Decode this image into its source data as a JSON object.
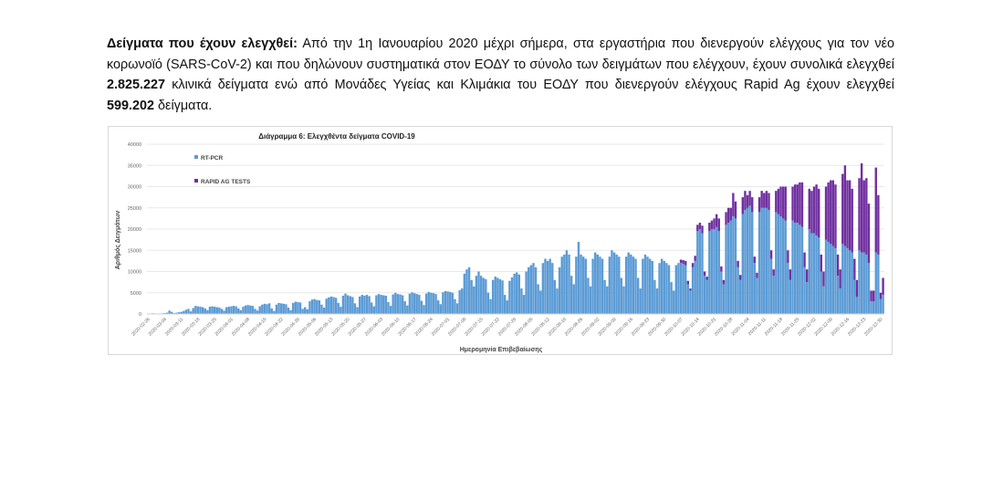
{
  "paragraph": {
    "heading": "Δείγματα που έχουν ελεγχθεί:",
    "text1": " Από την 1η Ιανουαρίου 2020 μέχρι σήμερα, στα εργαστήρια που διενεργούν ελέγχους για τον νέο κορωνοϊό (SARS-CoV-2) και που δηλώνουν συστηματικά στον ΕΟΔΥ το σύνολο των δειγμάτων που ελέγχουν, έχουν συνολικά ελεγχθεί ",
    "number1": "2.825.227",
    "text2": " κλινικά δείγματα ενώ από Μονάδες Υγείας και Κλιμάκια του ΕΟΔΥ που διενεργούν ελέγχους Rapid Ag έχουν ελεγχθεί ",
    "number2": "599.202",
    "text3": " δείγματα."
  },
  "chart_data": {
    "type": "bar",
    "stacked": true,
    "title": "Διάγραμμα 6: Ελεγχθέντα δείγματα COVID-19",
    "xlabel": "Ημερομηνία Επιβεβαίωσης",
    "ylabel": "Αριθμός Δειγμάτων",
    "ylim": [
      0,
      40000
    ],
    "y_ticks": [
      "0",
      "5000",
      "10000",
      "15000",
      "20000",
      "25000",
      "30000",
      "35000",
      "40000"
    ],
    "grid": true,
    "legend_position": "top-left",
    "start_date": "2020-02-26",
    "x_tick_labels": [
      "2020-02-26",
      "2020-03-04",
      "2020-03-11",
      "2020-03-18",
      "2020-03-25",
      "2020-04-01",
      "2020-04-08",
      "2020-04-15",
      "2020-04-22",
      "2020-04-29",
      "2020-05-06",
      "2020-05-13",
      "2020-05-20",
      "2020-05-27",
      "2020-06-03",
      "2020-06-10",
      "2020-06-17",
      "2020-06-24",
      "2020-07-01",
      "2020-07-08",
      "2020-07-15",
      "2020-07-22",
      "2020-07-29",
      "2020-08-05",
      "2020-08-12",
      "2020-08-19",
      "2020-08-26",
      "2020-09-02",
      "2020-09-09",
      "2020-09-16",
      "2020-09-23",
      "2020-09-30",
      "2020-10-07",
      "2020-10-14",
      "2020-10-21",
      "2020-10-28",
      "2020-11-04",
      "2020-11-11",
      "2020-11-18",
      "2020-11-25",
      "2020-12-02",
      "2020-12-09",
      "2020-12-16",
      "2020-12-23",
      "2020-12-30"
    ],
    "colors": {
      "rt_pcr": "#5b9bd5",
      "rapid": "#7030a0"
    },
    "series": [
      {
        "name": "RT-PCR",
        "values": [
          100,
          100,
          150,
          100,
          50,
          100,
          150,
          200,
          300,
          800,
          500,
          200,
          300,
          400,
          500,
          700,
          1000,
          1200,
          600,
          1400,
          1900,
          1800,
          1700,
          1600,
          1300,
          900,
          1700,
          1800,
          1700,
          1600,
          1500,
          1200,
          800,
          1600,
          1700,
          1800,
          1900,
          1800,
          1300,
          900,
          1700,
          2000,
          2100,
          2000,
          1900,
          1200,
          800,
          1800,
          2200,
          2400,
          2300,
          2500,
          1300,
          700,
          2200,
          2600,
          2500,
          2400,
          2300,
          1500,
          900,
          2600,
          2900,
          2800,
          2700,
          1200,
          1600,
          1100,
          3000,
          3400,
          3500,
          3300,
          3200,
          2200,
          1500,
          3600,
          3900,
          4100,
          4000,
          3800,
          2600,
          1700,
          4300,
          4800,
          4400,
          4200,
          4000,
          2500,
          1600,
          4100,
          4500,
          4300,
          4500,
          4200,
          2700,
          1800,
          4400,
          4700,
          4500,
          4400,
          4300,
          2800,
          1900,
          4600,
          5000,
          4700,
          4600,
          4400,
          3000,
          2000,
          4800,
          5100,
          4900,
          4700,
          4500,
          3100,
          2100,
          4800,
          5200,
          5000,
          4900,
          4700,
          3200,
          2300,
          5100,
          5400,
          5300,
          5200,
          5000,
          3500,
          2500,
          5600,
          6000,
          9500,
          10500,
          11000,
          8000,
          6500,
          9000,
          10000,
          9000,
          8500,
          8200,
          5000,
          3500,
          8000,
          8800,
          8500,
          8200,
          7900,
          4500,
          3200,
          7800,
          8600,
          9500,
          9800,
          9300,
          6000,
          4500,
          10000,
          11000,
          11500,
          12000,
          11000,
          7000,
          5500,
          12000,
          13000,
          12500,
          13000,
          12000,
          8000,
          6000,
          11000,
          13500,
          14000,
          15000,
          14000,
          9000,
          7000,
          13500,
          17000,
          14000,
          13500,
          13000,
          8500,
          6500,
          13000,
          14500,
          14000,
          13500,
          13000,
          8000,
          6500,
          13500,
          15000,
          14500,
          14000,
          13500,
          8500,
          6500,
          13500,
          14500,
          14000,
          13500,
          13000,
          8500,
          6000,
          13000,
          14000,
          13500,
          13000,
          12500,
          8000,
          6000,
          12000,
          13000,
          12500,
          12000,
          11500,
          7500,
          5500,
          11500,
          12000,
          12000,
          11800,
          11500,
          7000,
          5500,
          11000,
          12500,
          19500,
          20000,
          19000,
          9000,
          8000,
          19500,
          20000,
          20000,
          20500,
          19500,
          10000,
          7000,
          21000,
          21500,
          22000,
          23000,
          22500,
          11000,
          8000,
          23500,
          24500,
          25000,
          25500,
          24000,
          12000,
          8500,
          24000,
          25000,
          25000,
          25000,
          24500,
          13000,
          9000,
          24000,
          23500,
          23000,
          22500,
          22000,
          12000,
          8000,
          22000,
          21500,
          21500,
          21000,
          20500,
          11000,
          7500,
          20000,
          19000,
          19000,
          18500,
          18000,
          10000,
          6500,
          17500,
          17000,
          16500,
          16000,
          15500,
          9000,
          6000,
          16500,
          16000,
          15500,
          15000,
          14500,
          8000,
          4000,
          15000,
          14500,
          14500,
          14000,
          12000,
          3000,
          3000,
          14500,
          14000,
          3500,
          4500
        ]
      },
      {
        "name": "RAPID AG TESTS",
        "values": [
          0,
          0,
          0,
          0,
          0,
          0,
          0,
          0,
          0,
          0,
          0,
          0,
          0,
          0,
          0,
          0,
          0,
          0,
          0,
          0,
          0,
          0,
          0,
          0,
          0,
          0,
          0,
          0,
          0,
          0,
          0,
          0,
          0,
          0,
          0,
          0,
          0,
          0,
          0,
          0,
          0,
          0,
          0,
          0,
          0,
          0,
          0,
          0,
          0,
          0,
          0,
          0,
          0,
          0,
          0,
          0,
          0,
          0,
          0,
          0,
          0,
          0,
          0,
          0,
          0,
          0,
          0,
          0,
          0,
          0,
          0,
          0,
          0,
          0,
          0,
          0,
          0,
          0,
          0,
          0,
          0,
          0,
          0,
          0,
          0,
          0,
          0,
          0,
          0,
          0,
          0,
          0,
          0,
          0,
          0,
          0,
          0,
          0,
          0,
          0,
          0,
          0,
          0,
          0,
          0,
          0,
          0,
          0,
          0,
          0,
          0,
          0,
          0,
          0,
          0,
          0,
          0,
          0,
          0,
          0,
          0,
          0,
          0,
          0,
          0,
          0,
          0,
          0,
          0,
          0,
          0,
          0,
          0,
          0,
          0,
          0,
          0,
          0,
          0,
          0,
          0,
          0,
          0,
          0,
          0,
          0,
          0,
          0,
          0,
          0,
          0,
          0,
          0,
          0,
          0,
          0,
          0,
          0,
          0,
          0,
          0,
          0,
          0,
          0,
          0,
          0,
          0,
          0,
          0,
          0,
          0,
          0,
          0,
          0,
          0,
          0,
          0,
          0,
          0,
          0,
          0,
          0,
          0,
          0,
          0,
          0,
          0,
          0,
          0,
          0,
          0,
          0,
          0,
          0,
          0,
          0,
          0,
          0,
          0,
          0,
          0,
          0,
          0,
          0,
          0,
          0,
          0,
          0,
          0,
          0,
          0,
          0,
          0,
          0,
          0,
          0,
          0,
          0,
          0,
          0,
          0,
          0,
          0,
          0,
          800,
          900,
          1000,
          800,
          500,
          1000,
          1200,
          1500,
          1500,
          1800,
          1000,
          800,
          2000,
          2000,
          2500,
          3000,
          3000,
          1200,
          1000,
          3000,
          3500,
          3000,
          5500,
          4000,
          1500,
          1200,
          4000,
          4500,
          3000,
          3500,
          3500,
          1500,
          1200,
          3500,
          4000,
          3500,
          4000,
          4000,
          2000,
          1500,
          5000,
          6000,
          7000,
          7500,
          8000,
          3000,
          2500,
          8000,
          9000,
          9000,
          10000,
          10500,
          3500,
          3000,
          9500,
          10000,
          11000,
          12000,
          11500,
          4000,
          3500,
          12500,
          14000,
          15000,
          15500,
          15000,
          5000,
          4500,
          16500,
          19000,
          16000,
          16500,
          15000,
          5000,
          4000,
          17000,
          21000,
          17000,
          18000,
          14000,
          2500,
          2500,
          20000,
          14000,
          1500,
          4000
        ]
      }
    ]
  }
}
